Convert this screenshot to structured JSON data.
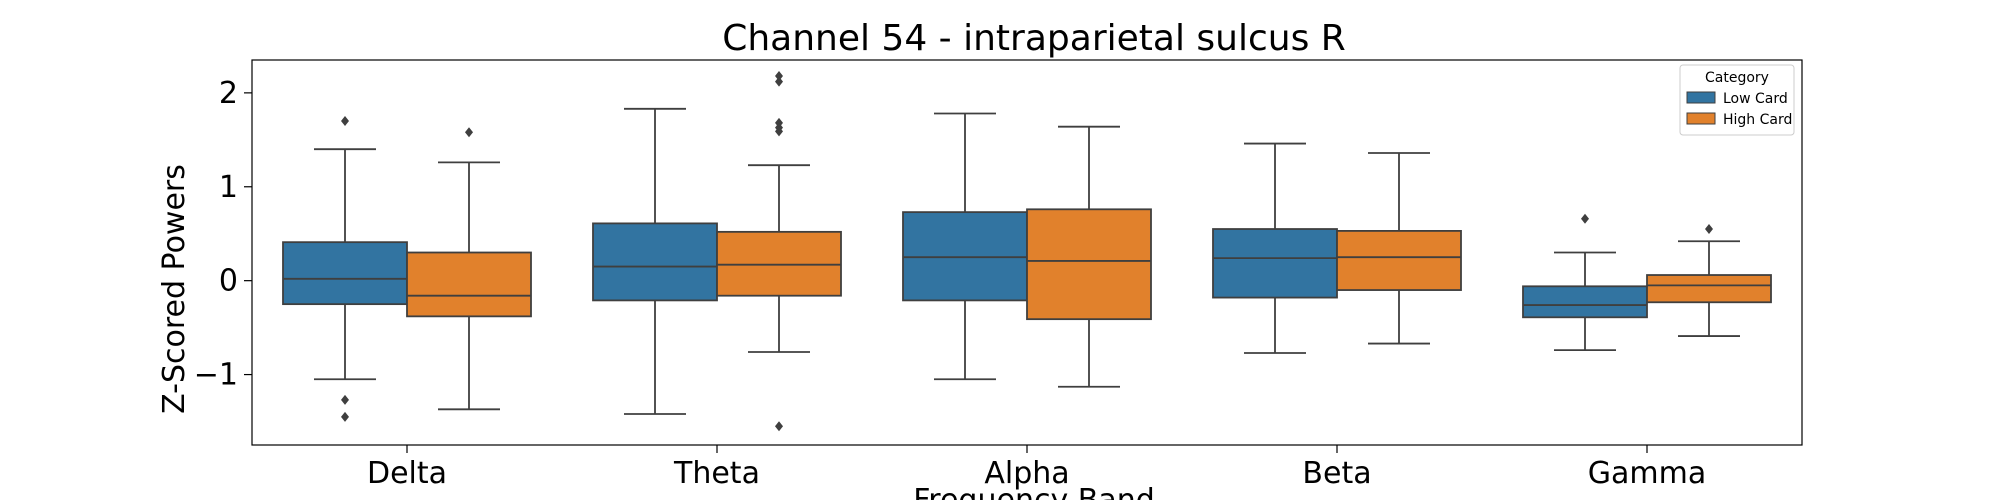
{
  "chart_data": {
    "type": "boxplot",
    "title": "Channel 54 - intraparietal sulcus R",
    "xlabel": "Frequency Band",
    "ylabel": "Z-Scored Powers",
    "ylim": [
      -1.75,
      2.35
    ],
    "yticks": [
      -1,
      0,
      1,
      2
    ],
    "ytick_labels": [
      "−1",
      "0",
      "1",
      "2"
    ],
    "categories": [
      "Delta",
      "Theta",
      "Alpha",
      "Beta",
      "Gamma"
    ],
    "legend": {
      "title": "Category",
      "position": "top-right"
    },
    "series": [
      {
        "name": "Low Card",
        "color": "#3274a1",
        "boxes": [
          {
            "whislo": -1.05,
            "q1": -0.25,
            "med": 0.02,
            "q3": 0.41,
            "whishi": 1.4,
            "fliers": [
              1.7,
              -1.27,
              -1.45
            ]
          },
          {
            "whislo": -1.42,
            "q1": -0.21,
            "med": 0.15,
            "q3": 0.61,
            "whishi": 1.83,
            "fliers": []
          },
          {
            "whislo": -1.05,
            "q1": -0.21,
            "med": 0.25,
            "q3": 0.73,
            "whishi": 1.78,
            "fliers": []
          },
          {
            "whislo": -0.77,
            "q1": -0.18,
            "med": 0.24,
            "q3": 0.55,
            "whishi": 1.46,
            "fliers": []
          },
          {
            "whislo": -0.74,
            "q1": -0.39,
            "med": -0.26,
            "q3": -0.06,
            "whishi": 0.3,
            "fliers": [
              0.66
            ]
          }
        ]
      },
      {
        "name": "High Card",
        "color": "#e1812c",
        "boxes": [
          {
            "whislo": -1.37,
            "q1": -0.38,
            "med": -0.16,
            "q3": 0.3,
            "whishi": 1.26,
            "fliers": [
              1.58
            ]
          },
          {
            "whislo": -0.76,
            "q1": -0.16,
            "med": 0.17,
            "q3": 0.52,
            "whishi": 1.23,
            "fliers": [
              2.18,
              2.12,
              1.68,
              1.63,
              1.59,
              -1.55
            ]
          },
          {
            "whislo": -1.13,
            "q1": -0.41,
            "med": 0.21,
            "q3": 0.76,
            "whishi": 1.64,
            "fliers": []
          },
          {
            "whislo": -0.67,
            "q1": -0.1,
            "med": 0.25,
            "q3": 0.53,
            "whishi": 1.36,
            "fliers": []
          },
          {
            "whislo": -0.59,
            "q1": -0.23,
            "med": -0.05,
            "q3": 0.06,
            "whishi": 0.42,
            "fliers": [
              0.55
            ]
          }
        ]
      }
    ]
  }
}
